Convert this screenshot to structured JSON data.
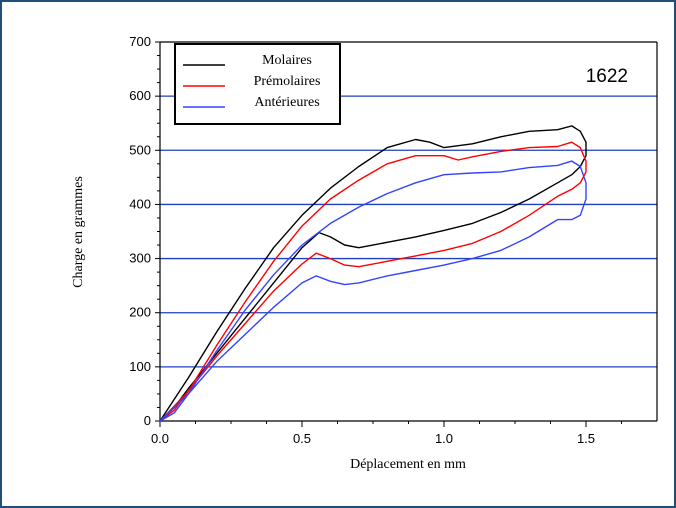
{
  "chart_data": {
    "type": "line",
    "title": "",
    "annotation": "1622",
    "xlabel": "Déplacement en mm",
    "ylabel": "Charge en grammes",
    "xlim": [
      0,
      1.75
    ],
    "ylim": [
      0,
      700
    ],
    "xticks": [
      "0.0",
      "0.5",
      "1.0",
      "1.5"
    ],
    "xtick_values": [
      0,
      0.5,
      1.0,
      1.5
    ],
    "yticks": [
      "0",
      "100",
      "200",
      "300",
      "400",
      "500",
      "600",
      "700"
    ],
    "ytick_values": [
      0,
      100,
      200,
      300,
      400,
      500,
      600,
      700
    ],
    "grid": "horizontal",
    "grid_color": "#1f3fbf",
    "legend_position": "top-left",
    "series": [
      {
        "name": "Molaires",
        "color": "#000000",
        "x": [
          0,
          0.1,
          0.2,
          0.3,
          0.4,
          0.5,
          0.6,
          0.7,
          0.8,
          0.9,
          0.95,
          1.0,
          1.1,
          1.2,
          1.3,
          1.4,
          1.45,
          1.48,
          1.5,
          1.5,
          1.48,
          1.45,
          1.4,
          1.3,
          1.2,
          1.1,
          1.0,
          0.9,
          0.8,
          0.7,
          0.65,
          0.6,
          0.56,
          0.5,
          0.4,
          0.3,
          0.2,
          0.1,
          0.05,
          0
        ],
        "y": [
          0,
          80,
          165,
          245,
          320,
          380,
          430,
          470,
          505,
          520,
          515,
          505,
          512,
          525,
          535,
          538,
          545,
          535,
          515,
          490,
          470,
          455,
          440,
          410,
          385,
          365,
          352,
          340,
          330,
          320,
          325,
          340,
          348,
          320,
          255,
          190,
          125,
          60,
          25,
          0
        ]
      },
      {
        "name": "Prémolaires",
        "color": "#ff0000",
        "x": [
          0,
          0.1,
          0.2,
          0.3,
          0.4,
          0.5,
          0.6,
          0.7,
          0.8,
          0.9,
          1.0,
          1.05,
          1.1,
          1.2,
          1.3,
          1.4,
          1.45,
          1.48,
          1.5,
          1.5,
          1.48,
          1.45,
          1.4,
          1.3,
          1.2,
          1.1,
          1.0,
          0.9,
          0.8,
          0.7,
          0.65,
          0.6,
          0.55,
          0.5,
          0.4,
          0.3,
          0.2,
          0.1,
          0.05,
          0
        ],
        "y": [
          0,
          55,
          140,
          220,
          295,
          360,
          410,
          445,
          475,
          490,
          490,
          482,
          488,
          498,
          505,
          507,
          515,
          505,
          480,
          460,
          440,
          428,
          415,
          380,
          350,
          328,
          315,
          305,
          295,
          285,
          288,
          300,
          310,
          290,
          240,
          180,
          120,
          55,
          20,
          0
        ]
      },
      {
        "name": "Antérieures",
        "color": "#3344ff",
        "x": [
          0,
          0.1,
          0.2,
          0.3,
          0.4,
          0.5,
          0.6,
          0.7,
          0.8,
          0.9,
          1.0,
          1.1,
          1.2,
          1.3,
          1.4,
          1.45,
          1.48,
          1.5,
          1.5,
          1.48,
          1.45,
          1.4,
          1.3,
          1.2,
          1.1,
          1.0,
          0.9,
          0.8,
          0.7,
          0.65,
          0.6,
          0.55,
          0.5,
          0.4,
          0.3,
          0.2,
          0.1,
          0.05,
          0
        ],
        "y": [
          0,
          50,
          130,
          205,
          270,
          325,
          365,
          395,
          420,
          440,
          455,
          458,
          460,
          468,
          472,
          480,
          470,
          440,
          410,
          380,
          372,
          372,
          340,
          315,
          300,
          288,
          278,
          268,
          255,
          252,
          258,
          268,
          255,
          210,
          160,
          110,
          50,
          15,
          0
        ]
      }
    ]
  }
}
